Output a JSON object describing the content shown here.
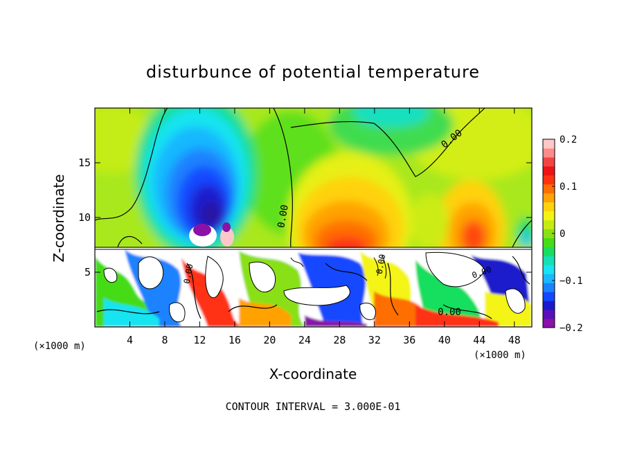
{
  "chart_data": {
    "type": "heatmap",
    "title": "disturbunce of potential temperature",
    "xlabel": "X-coordinate",
    "ylabel": "Z-coordinate",
    "x_unit_label": "(×1000 m)",
    "xlim": [
      0,
      50
    ],
    "ylim": [
      0,
      20
    ],
    "x_ticks": [
      4,
      8,
      12,
      16,
      20,
      24,
      28,
      32,
      36,
      40,
      44,
      48
    ],
    "y_ticks": [
      5,
      10,
      15
    ],
    "colorbar": {
      "range": [
        -0.2,
        0.2
      ],
      "tick_values": [
        0.2,
        0.1,
        0,
        -0.1,
        -0.2
      ],
      "tick_labels": [
        "0.2",
        "0.1",
        "0",
        "−0.1",
        "−0.2"
      ],
      "colors": [
        "#8a12a8",
        "#5a10b8",
        "#1a1acc",
        "#1448ff",
        "#1a82ff",
        "#19b8ff",
        "#16e4f0",
        "#15e0b4",
        "#17de5e",
        "#45dc18",
        "#8ae012",
        "#c4ec12",
        "#f4f414",
        "#ffd20c",
        "#ffa206",
        "#ff6e06",
        "#ff3212",
        "#ee1414",
        "#f24444",
        "#ff8a8a",
        "#ffc8c8"
      ]
    },
    "contour_labels": [
      "0.00",
      "0.00",
      "0.00",
      "0.00",
      "0.00",
      "0.00"
    ],
    "footnote": "CONTOUR INTERVAL = 3.000E-01"
  }
}
